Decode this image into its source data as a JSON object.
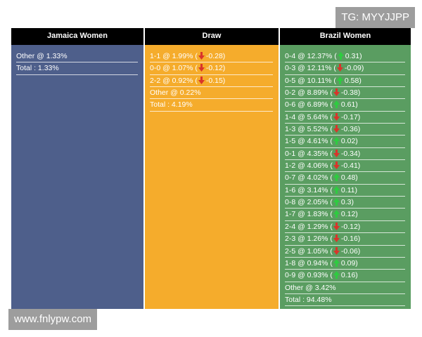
{
  "watermark_top": "TG: MYYJJPP",
  "watermark_bottom": "www.fnlypw.com",
  "columns": [
    {
      "header": "Jamaica Women",
      "rows": [
        {
          "text": "Other @ 1.33%"
        },
        {
          "text": "Total : 1.33%"
        }
      ]
    },
    {
      "header": "Draw",
      "rows": [
        {
          "text": "1-1 @ 1.99% (",
          "trend": "down",
          "change": "-0.28)"
        },
        {
          "text": "0-0 @ 1.07% (",
          "trend": "down",
          "change": "-0.12)"
        },
        {
          "text": "2-2 @ 0.92% (",
          "trend": "down",
          "change": "-0.15)"
        },
        {
          "text": "Other @ 0.22%"
        },
        {
          "text": "Total : 4.19%"
        }
      ]
    },
    {
      "header": "Brazil Women",
      "rows": [
        {
          "text": "0-4 @ 12.37% (",
          "trend": "up",
          "change": "0.31)"
        },
        {
          "text": "0-3 @ 12.11% (",
          "trend": "down",
          "change": "-0.09)"
        },
        {
          "text": "0-5 @ 10.11% (",
          "trend": "up",
          "change": "0.58)"
        },
        {
          "text": "0-2 @ 8.89% (",
          "trend": "down",
          "change": "-0.38)"
        },
        {
          "text": "0-6 @ 6.89% (",
          "trend": "up",
          "change": "0.61)"
        },
        {
          "text": "1-4 @ 5.64% (",
          "trend": "down",
          "change": "-0.17)"
        },
        {
          "text": "1-3 @ 5.52% (",
          "trend": "down",
          "change": "-0.36)"
        },
        {
          "text": "1-5 @ 4.61% (",
          "trend": "up",
          "change": "0.02)"
        },
        {
          "text": "0-1 @ 4.35% (",
          "trend": "down",
          "change": "-0.34)"
        },
        {
          "text": "1-2 @ 4.06% (",
          "trend": "down",
          "change": "-0.41)"
        },
        {
          "text": "0-7 @ 4.02% (",
          "trend": "up",
          "change": "0.48)"
        },
        {
          "text": "1-6 @ 3.14% (",
          "trend": "up",
          "change": "0.11)"
        },
        {
          "text": "0-8 @ 2.05% (",
          "trend": "up",
          "change": "0.3)"
        },
        {
          "text": "1-7 @ 1.83% (",
          "trend": "up",
          "change": "0.12)"
        },
        {
          "text": "2-4 @ 1.29% (",
          "trend": "down",
          "change": "-0.12)"
        },
        {
          "text": "2-3 @ 1.26% (",
          "trend": "down",
          "change": "-0.16)"
        },
        {
          "text": "2-5 @ 1.05% (",
          "trend": "down",
          "change": "-0.06)"
        },
        {
          "text": "1-8 @ 0.94% (",
          "trend": "up",
          "change": "0.09)"
        },
        {
          "text": "0-9 @ 0.93% (",
          "trend": "up",
          "change": "0.16)"
        },
        {
          "text": "Other @ 3.42%"
        },
        {
          "text": "Total : 94.48%"
        }
      ]
    }
  ]
}
